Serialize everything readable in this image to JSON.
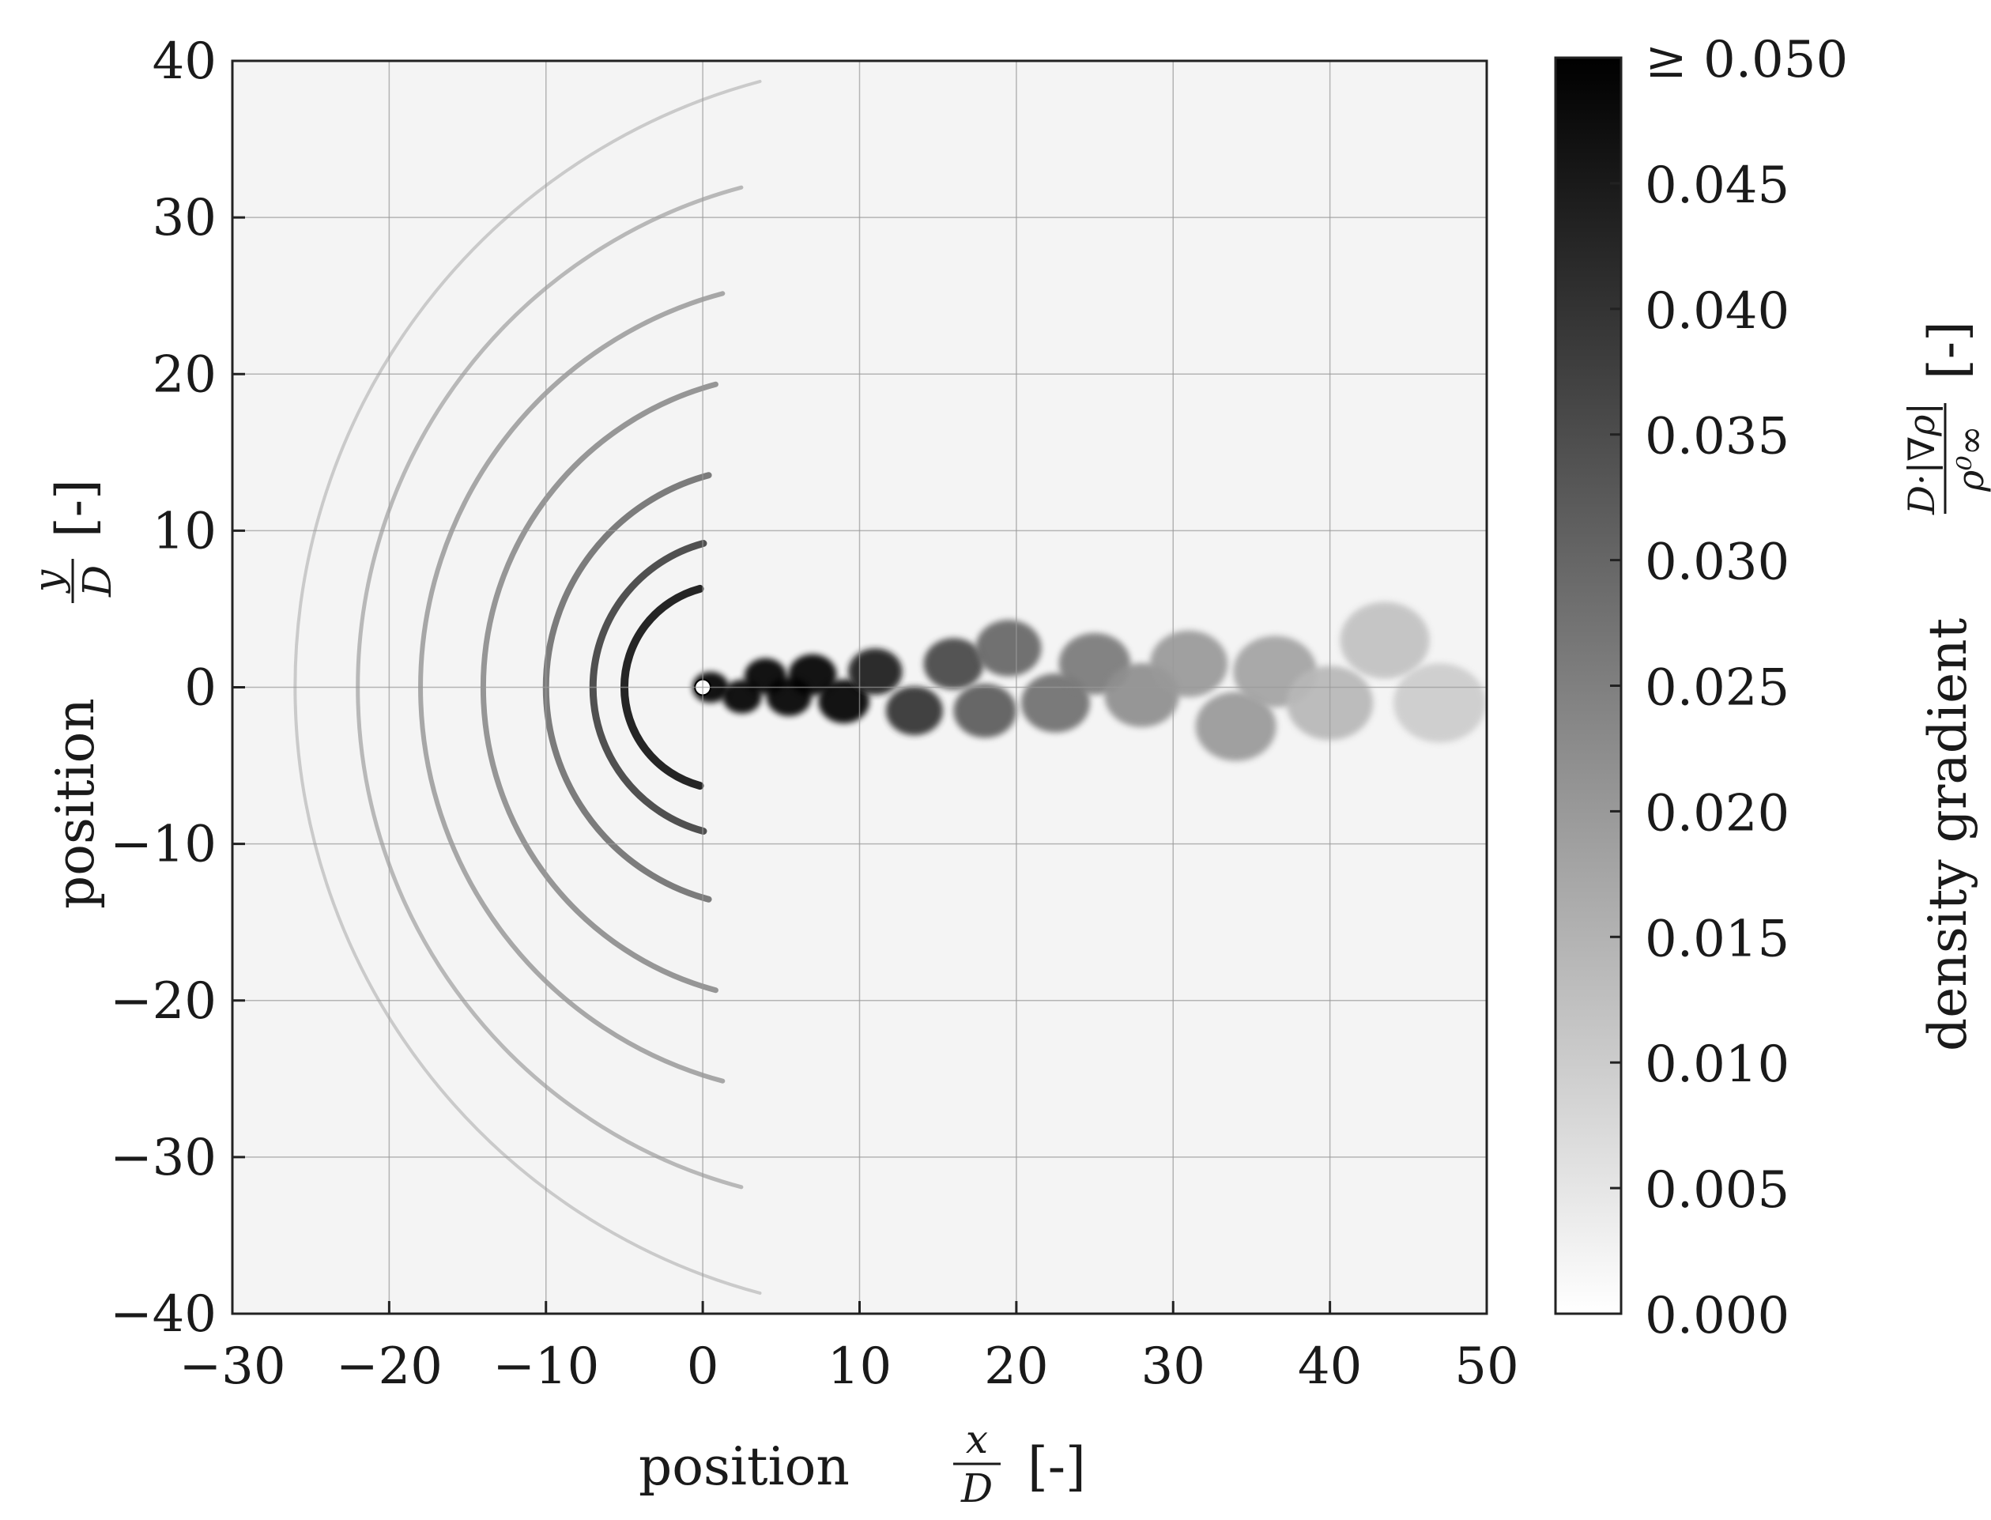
{
  "chart_data": {
    "type": "heatmap",
    "x_axis": {
      "label_prefix": "position",
      "label_frac_num": "x",
      "label_frac_den": "D",
      "label_suffix": "[-]",
      "range": [
        -30,
        50
      ],
      "ticks": [
        -30,
        -20,
        -10,
        0,
        10,
        20,
        30,
        40,
        50
      ],
      "tick_labels": [
        "−30",
        "−20",
        "−10",
        "0",
        "10",
        "20",
        "30",
        "40",
        "50"
      ]
    },
    "y_axis": {
      "label_prefix": "position",
      "label_frac_num": "y",
      "label_frac_den": "D",
      "label_suffix": "[-]",
      "range": [
        -40,
        40
      ],
      "ticks": [
        -40,
        -30,
        -20,
        -10,
        0,
        10,
        20,
        30,
        40
      ],
      "tick_labels": [
        "−40",
        "−30",
        "−20",
        "−10",
        "0",
        "10",
        "20",
        "30",
        "40"
      ]
    },
    "grid": true,
    "colormap": "grayscale (white = 0, black = max)",
    "colorbar": {
      "label_prefix": "density gradient",
      "label_frac_num": "D·|∇ρ|",
      "label_frac_den": "ρ⁰∞",
      "label_suffix": "[-]",
      "range": [
        0,
        0.05
      ],
      "ticks": [
        0,
        0.005,
        0.01,
        0.015,
        0.02,
        0.025,
        0.03,
        0.035,
        0.04,
        0.045,
        0.05
      ],
      "tick_labels": [
        "0.000",
        "0.005",
        "0.010",
        "0.015",
        "0.020",
        "0.025",
        "0.030",
        "0.035",
        "0.040",
        "0.045",
        "≥ 0.050"
      ],
      "position": "right"
    },
    "features": {
      "cylinder_center": [
        0,
        0
      ],
      "wake_vortices": [
        {
          "x": 0.5,
          "y": 0.0,
          "v": 0.05
        },
        {
          "x": 2.5,
          "y": -0.6,
          "v": 0.05
        },
        {
          "x": 4.0,
          "y": 0.7,
          "v": 0.05
        },
        {
          "x": 5.5,
          "y": -0.6,
          "v": 0.05
        },
        {
          "x": 7.0,
          "y": 0.8,
          "v": 0.05
        },
        {
          "x": 9.0,
          "y": -0.9,
          "v": 0.05
        },
        {
          "x": 11.0,
          "y": 1.0,
          "v": 0.045
        },
        {
          "x": 13.5,
          "y": -1.5,
          "v": 0.04
        },
        {
          "x": 16.0,
          "y": 1.5,
          "v": 0.036
        },
        {
          "x": 18.0,
          "y": -1.5,
          "v": 0.032
        },
        {
          "x": 19.5,
          "y": 2.5,
          "v": 0.03
        },
        {
          "x": 22.5,
          "y": -1.0,
          "v": 0.028
        },
        {
          "x": 25.0,
          "y": 1.5,
          "v": 0.026
        },
        {
          "x": 28.0,
          "y": -0.5,
          "v": 0.022
        },
        {
          "x": 31.0,
          "y": 1.5,
          "v": 0.02
        },
        {
          "x": 34.0,
          "y": -2.5,
          "v": 0.02
        },
        {
          "x": 36.5,
          "y": 1.0,
          "v": 0.018
        },
        {
          "x": 40.0,
          "y": -1.0,
          "v": 0.014
        },
        {
          "x": 43.5,
          "y": 3.0,
          "v": 0.012
        },
        {
          "x": 47.0,
          "y": -1.0,
          "v": 0.01
        }
      ],
      "acoustic_wavefronts": [
        {
          "cx": 1.5,
          "cy": 0,
          "r": 6.5,
          "v": 0.05
        },
        {
          "cx": 2.5,
          "cy": 0,
          "r": 9.5,
          "v": 0.04
        },
        {
          "cx": 4.0,
          "cy": 0,
          "r": 14.0,
          "v": 0.03
        },
        {
          "cx": 6.0,
          "cy": 0,
          "r": 20.0,
          "v": 0.024
        },
        {
          "cx": 8.0,
          "cy": 0,
          "r": 26.0,
          "v": 0.02
        },
        {
          "cx": 11.0,
          "cy": 0,
          "r": 33.0,
          "v": 0.016
        },
        {
          "cx": 14.0,
          "cy": 0,
          "r": 40.0,
          "v": 0.012
        }
      ]
    }
  }
}
